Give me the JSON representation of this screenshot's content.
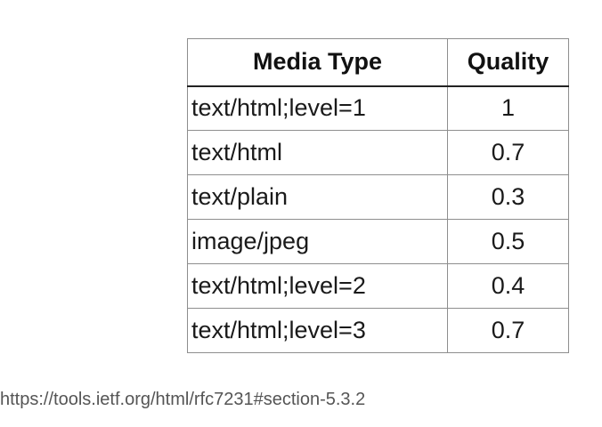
{
  "table": {
    "headers": {
      "media_type": "Media Type",
      "quality": "Quality"
    },
    "rows": [
      {
        "media_type": "text/html;level=1",
        "quality": "1"
      },
      {
        "media_type": "text/html",
        "quality": "0.7"
      },
      {
        "media_type": "text/plain",
        "quality": "0.3"
      },
      {
        "media_type": "image/jpeg",
        "quality": "0.5"
      },
      {
        "media_type": "text/html;level=2",
        "quality": "0.4"
      },
      {
        "media_type": "text/html;level=3",
        "quality": "0.7"
      }
    ]
  },
  "source": {
    "url": "https://tools.ietf.org/html/rfc7231#section-5.3.2"
  }
}
